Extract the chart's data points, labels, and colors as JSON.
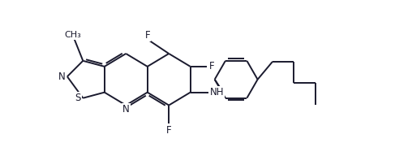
{
  "background_color": "#ffffff",
  "line_color": "#1a1a2e",
  "lw": 1.4,
  "fs": 8.5,
  "figsize": [
    4.87,
    1.92
  ],
  "dpi": 100,
  "xlim": [
    -1.8,
    9.8
  ],
  "ylim": [
    -2.2,
    3.2
  ]
}
